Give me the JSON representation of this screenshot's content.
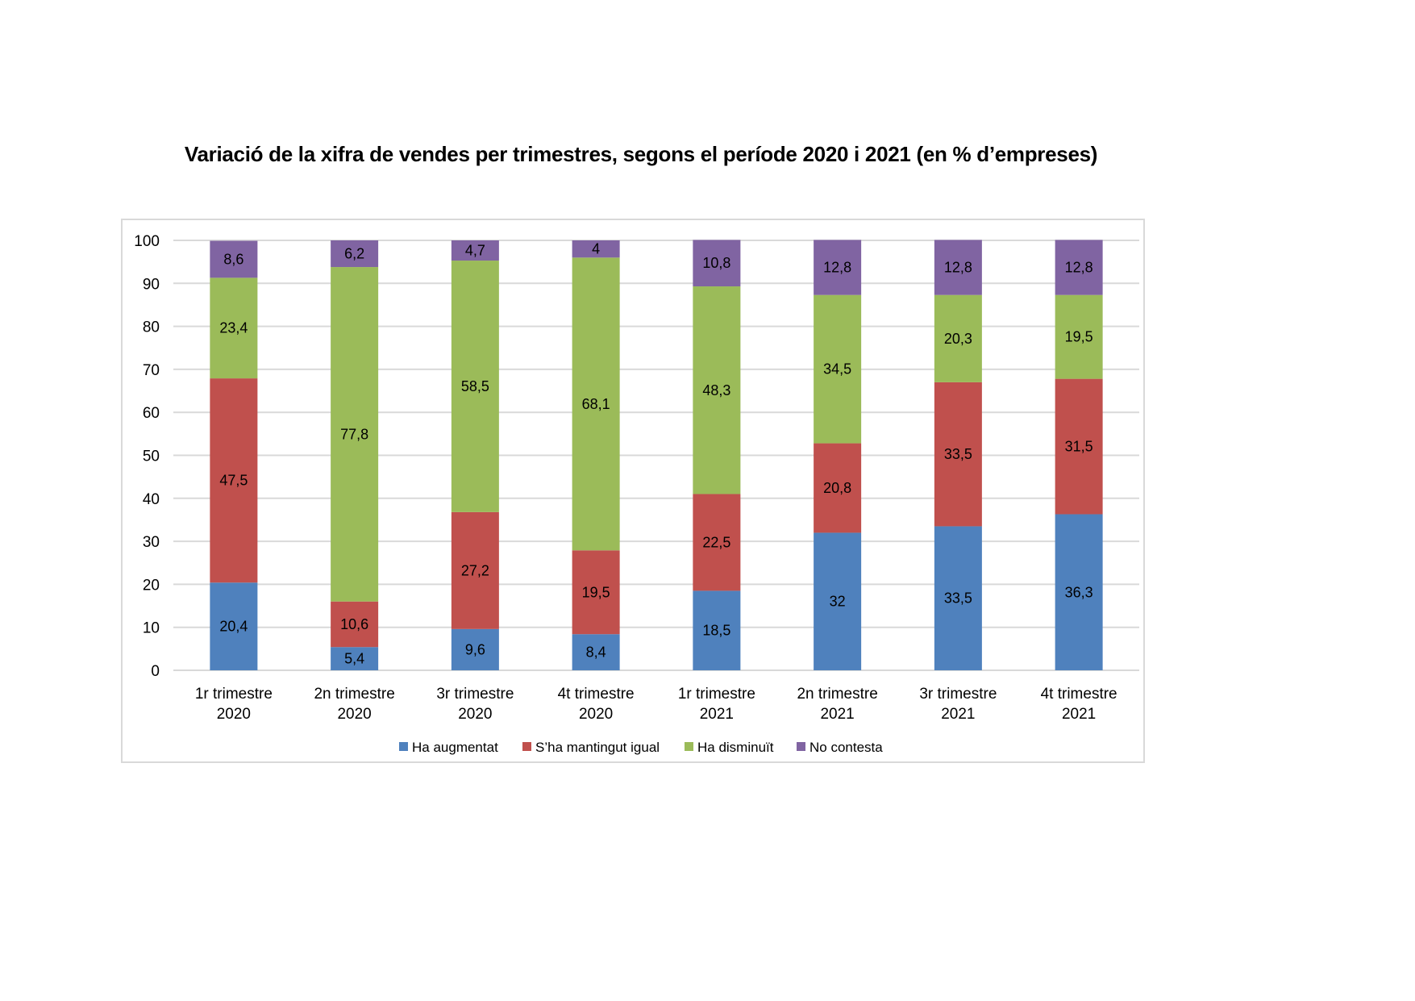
{
  "chart_data": {
    "type": "bar",
    "stacked": true,
    "title": "Variació de la xifra de vendes per trimestres, segons el període 2020 i 2021 (en % d’empreses)",
    "xlabel": "",
    "ylabel": "",
    "ylim": [
      0,
      100
    ],
    "yticks": [
      0,
      10,
      20,
      30,
      40,
      50,
      60,
      70,
      80,
      90,
      100
    ],
    "grid": true,
    "legend_position": "bottom",
    "categories": [
      [
        "1r trimestre",
        "2020"
      ],
      [
        "2n trimestre",
        "2020"
      ],
      [
        "3r trimestre",
        "2020"
      ],
      [
        "4t trimestre",
        "2020"
      ],
      [
        "1r trimestre",
        "2021"
      ],
      [
        "2n trimestre",
        "2021"
      ],
      [
        "3r trimestre",
        "2021"
      ],
      [
        "4t trimestre",
        "2021"
      ]
    ],
    "series": [
      {
        "name": "Ha augmentat",
        "color": "#4F81BD",
        "values": [
          20.4,
          5.4,
          9.6,
          8.4,
          18.5,
          32,
          33.5,
          36.3
        ],
        "labels": [
          "20,4",
          "5,4",
          "9,6",
          "8,4",
          "18,5",
          "32",
          "33,5",
          "36,3"
        ]
      },
      {
        "name": "S’ha mantingut igual",
        "color": "#C0504D",
        "values": [
          47.5,
          10.6,
          27.2,
          19.5,
          22.5,
          20.8,
          33.5,
          31.5
        ],
        "labels": [
          "47,5",
          "10,6",
          "27,2",
          "19,5",
          "22,5",
          "20,8",
          "33,5",
          "31,5"
        ]
      },
      {
        "name": "Ha disminuït",
        "color": "#9BBB59",
        "values": [
          23.4,
          77.8,
          58.5,
          68.1,
          48.3,
          34.5,
          20.3,
          19.5
        ],
        "labels": [
          "23,4",
          "77,8",
          "58,5",
          "68,1",
          "48,3",
          "34,5",
          "20,3",
          "19,5"
        ]
      },
      {
        "name": "No contesta",
        "color": "#8064A2",
        "values": [
          8.6,
          6.2,
          4.7,
          4,
          10.8,
          12.8,
          12.8,
          12.8
        ],
        "labels": [
          "8,6",
          "6,2",
          "4,7",
          "4",
          "10,8",
          "12,8",
          "12,8",
          "12,8"
        ]
      }
    ]
  }
}
